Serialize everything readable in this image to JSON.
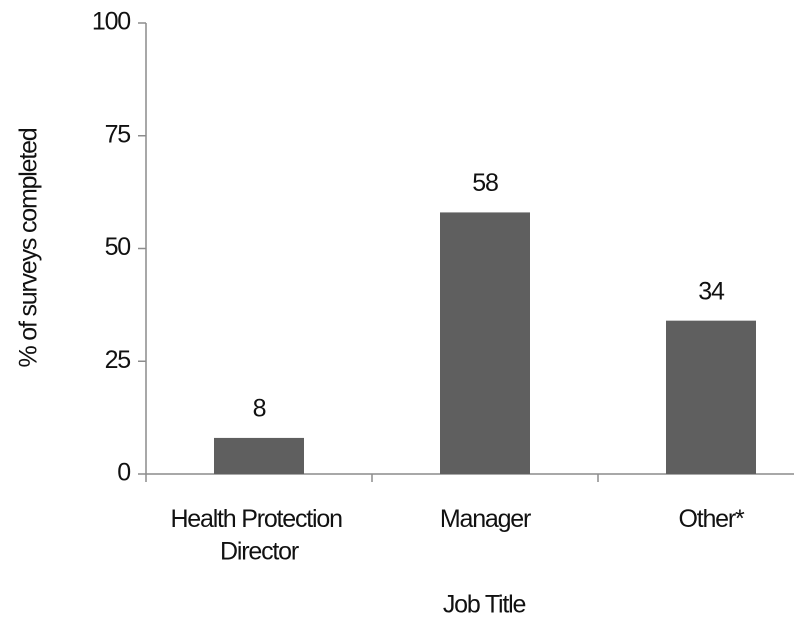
{
  "chart_data": {
    "type": "bar",
    "categories": [
      "Health Protection Director",
      "Manager",
      "Other*"
    ],
    "values": [
      8,
      58,
      34
    ],
    "color": "#5f5f5f",
    "ylim": [
      0,
      100
    ],
    "yticks": [
      0,
      25,
      50,
      75,
      100
    ],
    "xlabel": "Job Title",
    "ylabel": "% of surveys completed",
    "grid": false
  }
}
